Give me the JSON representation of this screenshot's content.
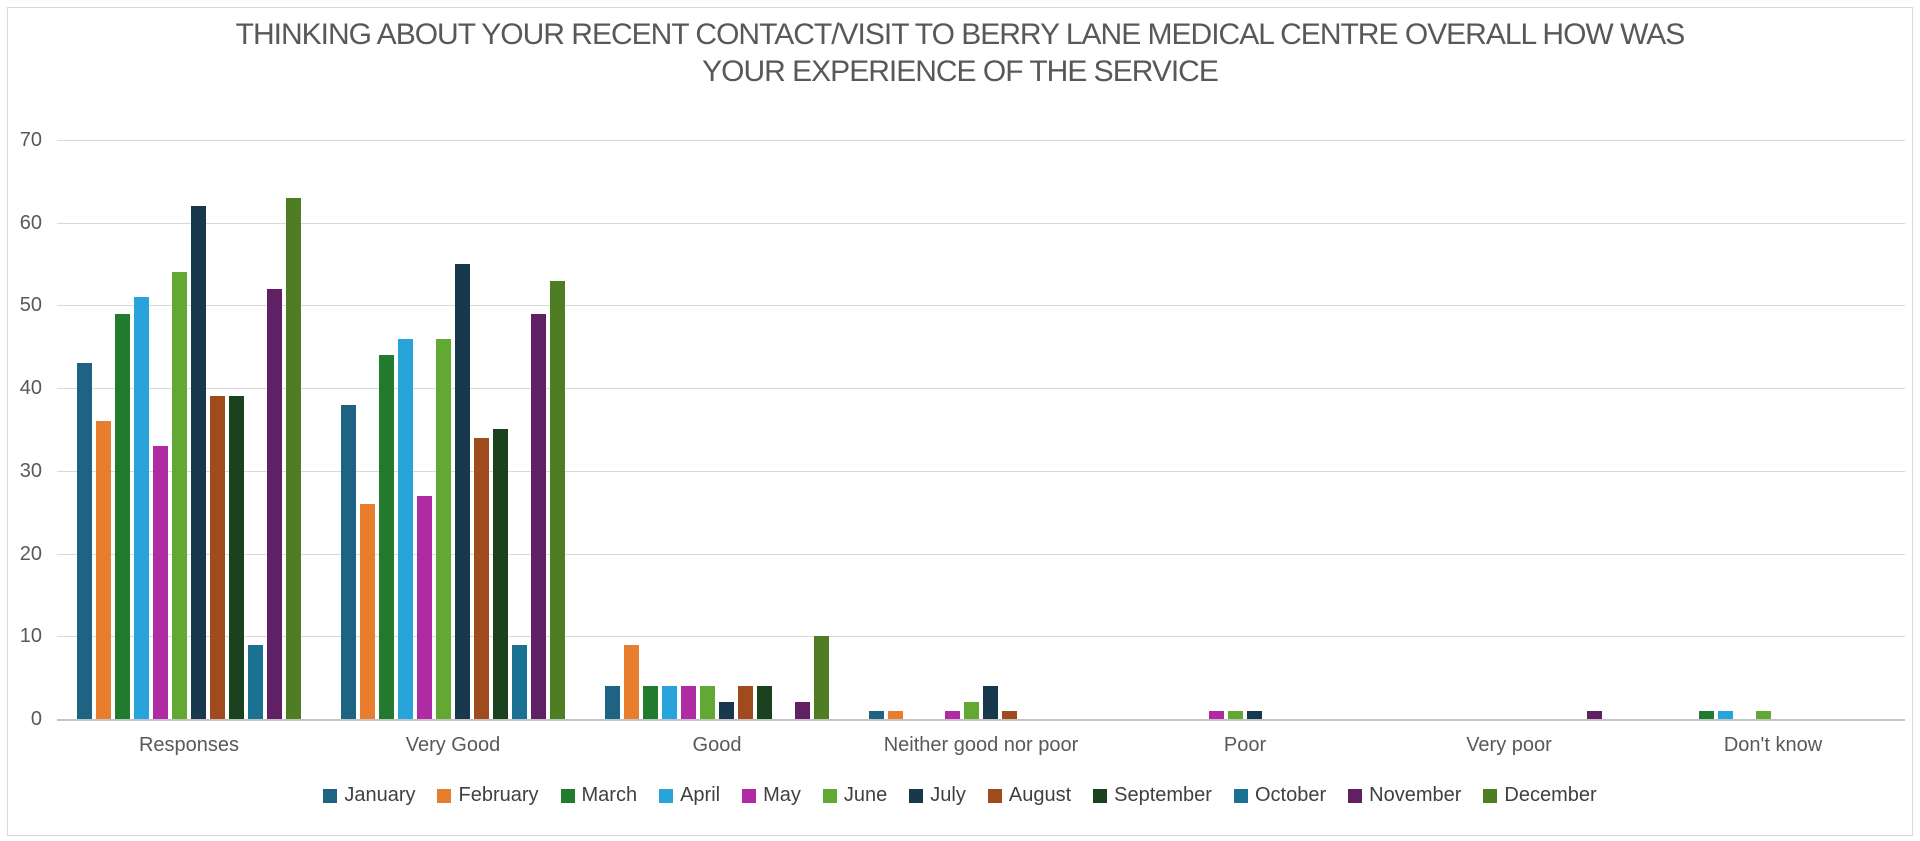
{
  "title": {
    "line1": "THINKING ABOUT YOUR RECENT CONTACT/VISIT TO BERRY LANE MEDICAL CENTRE OVERALL HOW WAS",
    "line2": "YOUR EXPERIENCE OF THE SERVICE"
  },
  "colors": {
    "background": "#FFFFFF",
    "frame_border": "#D9D9D9",
    "gridline": "#D9D9D9",
    "axis_line": "#C3C3C3",
    "title_text": "#585858",
    "axis_text": "#595959",
    "legend_text": "#404040"
  },
  "chart_data": {
    "type": "bar",
    "title": "THINKING ABOUT YOUR RECENT CONTACT/VISIT TO BERRY LANE MEDICAL CENTRE OVERALL HOW WAS YOUR EXPERIENCE OF THE SERVICE",
    "xlabel": "",
    "ylabel": "",
    "ylim": [
      0,
      70
    ],
    "ytick_step": 10,
    "y_tick_labels": [
      "0",
      "10",
      "20",
      "30",
      "40",
      "50",
      "60",
      "70"
    ],
    "grid": true,
    "legend_position": "bottom",
    "categories": [
      "Responses",
      "Very Good",
      "Good",
      "Neither good nor poor",
      "Poor",
      "Very poor",
      "Don't know"
    ],
    "series": [
      {
        "name": "January",
        "color": "#1F6383",
        "values": [
          43,
          38,
          4,
          1,
          0,
          0,
          0
        ]
      },
      {
        "name": "February",
        "color": "#E87E2D",
        "values": [
          36,
          26,
          9,
          1,
          0,
          0,
          0
        ]
      },
      {
        "name": "March",
        "color": "#217A2E",
        "values": [
          49,
          44,
          4,
          0,
          0,
          0,
          1
        ]
      },
      {
        "name": "April",
        "color": "#28A4DB",
        "values": [
          51,
          46,
          4,
          0,
          0,
          0,
          1
        ]
      },
      {
        "name": "May",
        "color": "#AE2BA4",
        "values": [
          33,
          27,
          4,
          1,
          1,
          0,
          0
        ]
      },
      {
        "name": "June",
        "color": "#61A932",
        "values": [
          54,
          46,
          4,
          2,
          1,
          0,
          1
        ]
      },
      {
        "name": "July",
        "color": "#17384D",
        "values": [
          62,
          55,
          2,
          4,
          1,
          0,
          0
        ]
      },
      {
        "name": "August",
        "color": "#A04B1D",
        "values": [
          39,
          34,
          4,
          1,
          0,
          0,
          0
        ]
      },
      {
        "name": "September",
        "color": "#1A421F",
        "values": [
          39,
          35,
          4,
          0,
          0,
          0,
          0
        ]
      },
      {
        "name": "October",
        "color": "#1B7191",
        "values": [
          9,
          9,
          0,
          0,
          0,
          0,
          0
        ]
      },
      {
        "name": "November",
        "color": "#5F2163",
        "values": [
          52,
          49,
          2,
          0,
          0,
          1,
          0
        ]
      },
      {
        "name": "December",
        "color": "#4E7D23",
        "values": [
          63,
          53,
          10,
          0,
          0,
          0,
          0
        ]
      }
    ]
  }
}
